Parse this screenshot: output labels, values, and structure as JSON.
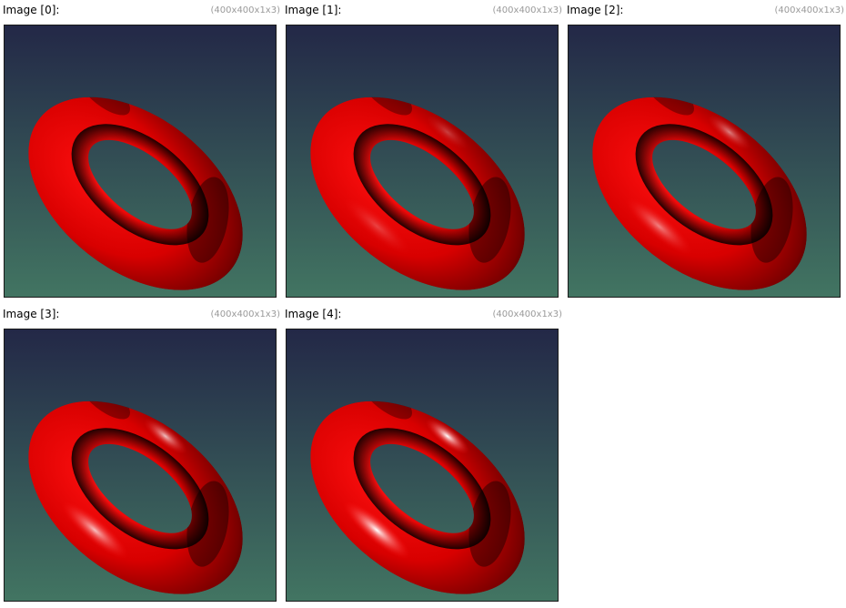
{
  "window": {
    "images": [
      {
        "title": "Image [0]:",
        "dims": "(400x400x1x3)",
        "specular": 0.0
      },
      {
        "title": "Image [1]:",
        "dims": "(400x400x1x3)",
        "specular": 0.25
      },
      {
        "title": "Image [2]:",
        "dims": "(400x400x1x3)",
        "specular": 0.5
      },
      {
        "title": "Image [3]:",
        "dims": "(400x400x1x3)",
        "specular": 0.75
      },
      {
        "title": "Image [4]:",
        "dims": "(400x400x1x3)",
        "specular": 1.0
      }
    ]
  },
  "colors": {
    "background_top": "#232847",
    "background_bottom": "#427562",
    "torus_base": "#ff0000",
    "torus_shadow": "#1a0000",
    "highlight": "#ffffff"
  }
}
